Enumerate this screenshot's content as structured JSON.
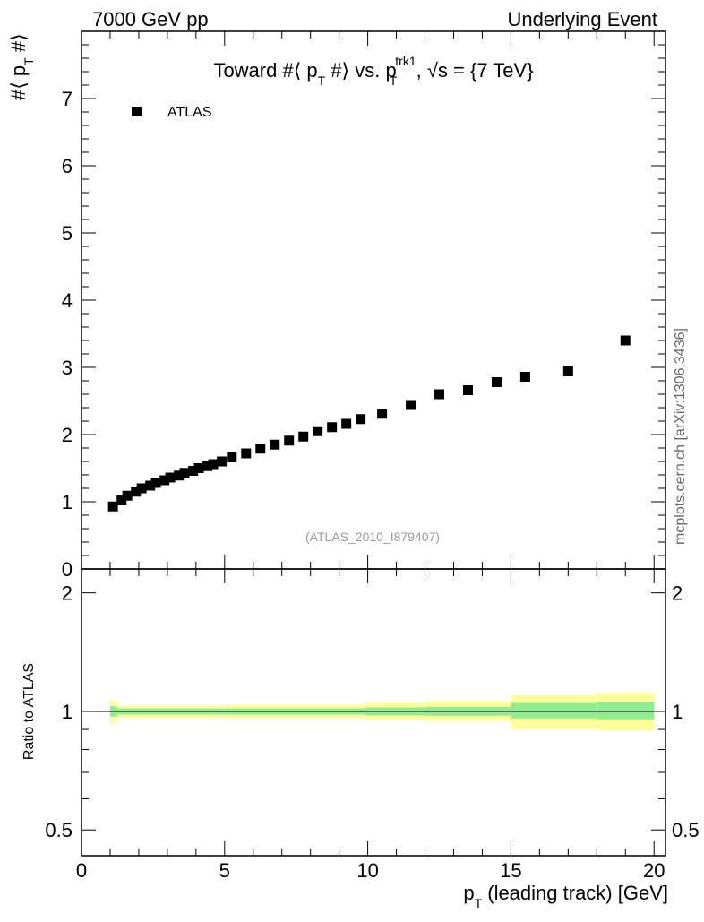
{
  "header": {
    "left": "7000 GeV pp",
    "right": "Underlying Event"
  },
  "side_credit": "mcplots.cern.ch [arXiv:1306.3436]",
  "analysis_label": "(ATLAS_2010_I879407)",
  "colors": {
    "points": "#000000",
    "band_inner": "#90ee90",
    "band_outer": "#ffff99",
    "analysis_label": "#999999",
    "side_credit": "#666666"
  },
  "chart_data": [
    {
      "type": "scatter",
      "title_parts": [
        "Toward #⟨ p",
        "T",
        " #⟩ vs. p",
        "T",
        "trk1",
        ", √s = {7 TeV}"
      ],
      "ylabel_parts": [
        "#⟨ p",
        "T",
        " #⟩"
      ],
      "ylim": [
        0,
        8
      ],
      "xlim": [
        0,
        20.4
      ],
      "y_ticks": [
        0,
        1,
        2,
        3,
        4,
        5,
        6,
        7
      ],
      "grid": false,
      "legend_position": "top-left",
      "series": [
        {
          "name": "ATLAS",
          "marker": "square",
          "x": [
            1.1,
            1.4,
            1.6,
            1.9,
            2.1,
            2.4,
            2.6,
            2.9,
            3.1,
            3.4,
            3.6,
            3.9,
            4.1,
            4.4,
            4.6,
            4.9,
            5.25,
            5.75,
            6.25,
            6.75,
            7.25,
            7.75,
            8.25,
            8.75,
            9.25,
            9.75,
            10.5,
            11.5,
            12.5,
            13.5,
            14.5,
            15.5,
            17.0,
            19.0
          ],
          "y": [
            0.93,
            1.02,
            1.09,
            1.15,
            1.2,
            1.24,
            1.28,
            1.32,
            1.36,
            1.39,
            1.43,
            1.46,
            1.5,
            1.53,
            1.56,
            1.6,
            1.66,
            1.72,
            1.79,
            1.85,
            1.91,
            1.97,
            2.05,
            2.11,
            2.16,
            2.23,
            2.31,
            2.44,
            2.6,
            2.66,
            2.78,
            2.86,
            2.94,
            3.4
          ]
        }
      ]
    },
    {
      "type": "area",
      "ylabel": "Ratio to ATLAS",
      "xlabel_parts": [
        "p",
        "T",
        " (leading track) [GeV]"
      ],
      "xlim": [
        0,
        20.4
      ],
      "x_ticks": [
        0,
        5,
        10,
        15,
        20
      ],
      "y_scale": "log",
      "ylim": [
        0.43,
        2.3
      ],
      "y_ticks": [
        "0.5",
        "1",
        "2"
      ],
      "reference_line": 1,
      "bins": [
        {
          "lo": 1.0,
          "hi": 1.25,
          "inner": [
            0.97,
            1.03
          ],
          "outer": [
            0.935,
            1.07
          ]
        },
        {
          "lo": 1.25,
          "hi": 5.0,
          "inner": [
            0.982,
            1.018
          ],
          "outer": [
            0.965,
            1.035
          ]
        },
        {
          "lo": 5.0,
          "hi": 9.9,
          "inner": [
            0.982,
            1.018
          ],
          "outer": [
            0.962,
            1.04
          ]
        },
        {
          "lo": 9.9,
          "hi": 12.0,
          "inner": [
            0.977,
            1.023
          ],
          "outer": [
            0.952,
            1.05
          ]
        },
        {
          "lo": 12.0,
          "hi": 15.0,
          "inner": [
            0.975,
            1.028
          ],
          "outer": [
            0.945,
            1.058
          ]
        },
        {
          "lo": 15.0,
          "hi": 18.0,
          "inner": [
            0.96,
            1.05
          ],
          "outer": [
            0.9,
            1.1
          ]
        },
        {
          "lo": 18.0,
          "hi": 20.0,
          "inner": [
            0.955,
            1.055
          ],
          "outer": [
            0.895,
            1.115
          ]
        }
      ]
    }
  ]
}
